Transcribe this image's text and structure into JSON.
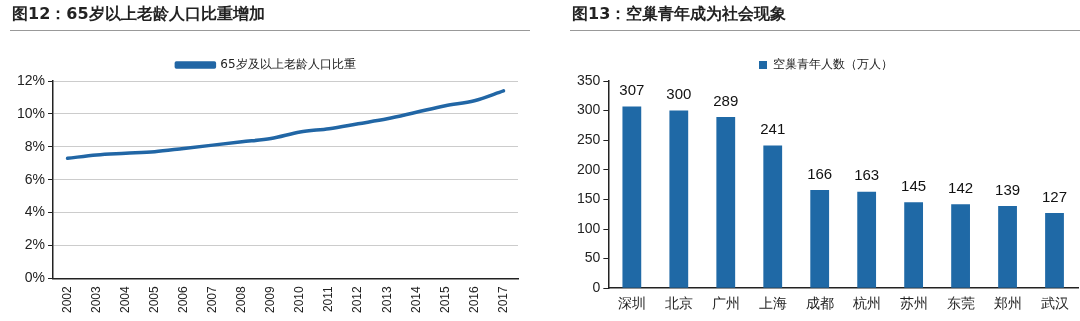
{
  "chart_data": [
    {
      "type": "line",
      "title": "图12：65岁以上老龄人口比重增加",
      "categories": [
        "2002",
        "2003",
        "2004",
        "2005",
        "2006",
        "2007",
        "2008",
        "2009",
        "2010",
        "2011",
        "2012",
        "2013",
        "2014",
        "2015",
        "2016",
        "2017"
      ],
      "series": [
        {
          "name": "65岁及以上老龄人口比重",
          "color": "#2166a5",
          "values": [
            7.3,
            7.5,
            7.6,
            7.7,
            7.9,
            8.1,
            8.3,
            8.5,
            8.9,
            9.1,
            9.4,
            9.7,
            10.1,
            10.5,
            10.8,
            11.4
          ]
        }
      ],
      "ylim": [
        0,
        12
      ],
      "yticks": [
        {
          "value": 0,
          "label": "0%"
        },
        {
          "value": 2,
          "label": "2%"
        },
        {
          "value": 4,
          "label": "4%"
        },
        {
          "value": 6,
          "label": "6%"
        },
        {
          "value": 8,
          "label": "8%"
        },
        {
          "value": 10,
          "label": "10%"
        },
        {
          "value": 12,
          "label": "12%"
        }
      ],
      "grid": "y",
      "legend": "top"
    },
    {
      "type": "bar",
      "title": "图13：空巢青年成为社会现象",
      "categories": [
        "深圳",
        "北京",
        "广州",
        "上海",
        "成都",
        "杭州",
        "苏州",
        "东莞",
        "郑州",
        "武汉"
      ],
      "series": [
        {
          "name": "空巢青年人数（万人）",
          "color": "#1f69a6",
          "values": [
            307,
            300,
            289,
            241,
            166,
            163,
            145,
            142,
            139,
            127
          ]
        }
      ],
      "ylim": [
        0,
        350
      ],
      "yticks": [
        0,
        50,
        100,
        150,
        200,
        250,
        300,
        350
      ],
      "grid": false,
      "legend": "top",
      "data_labels": true
    }
  ]
}
